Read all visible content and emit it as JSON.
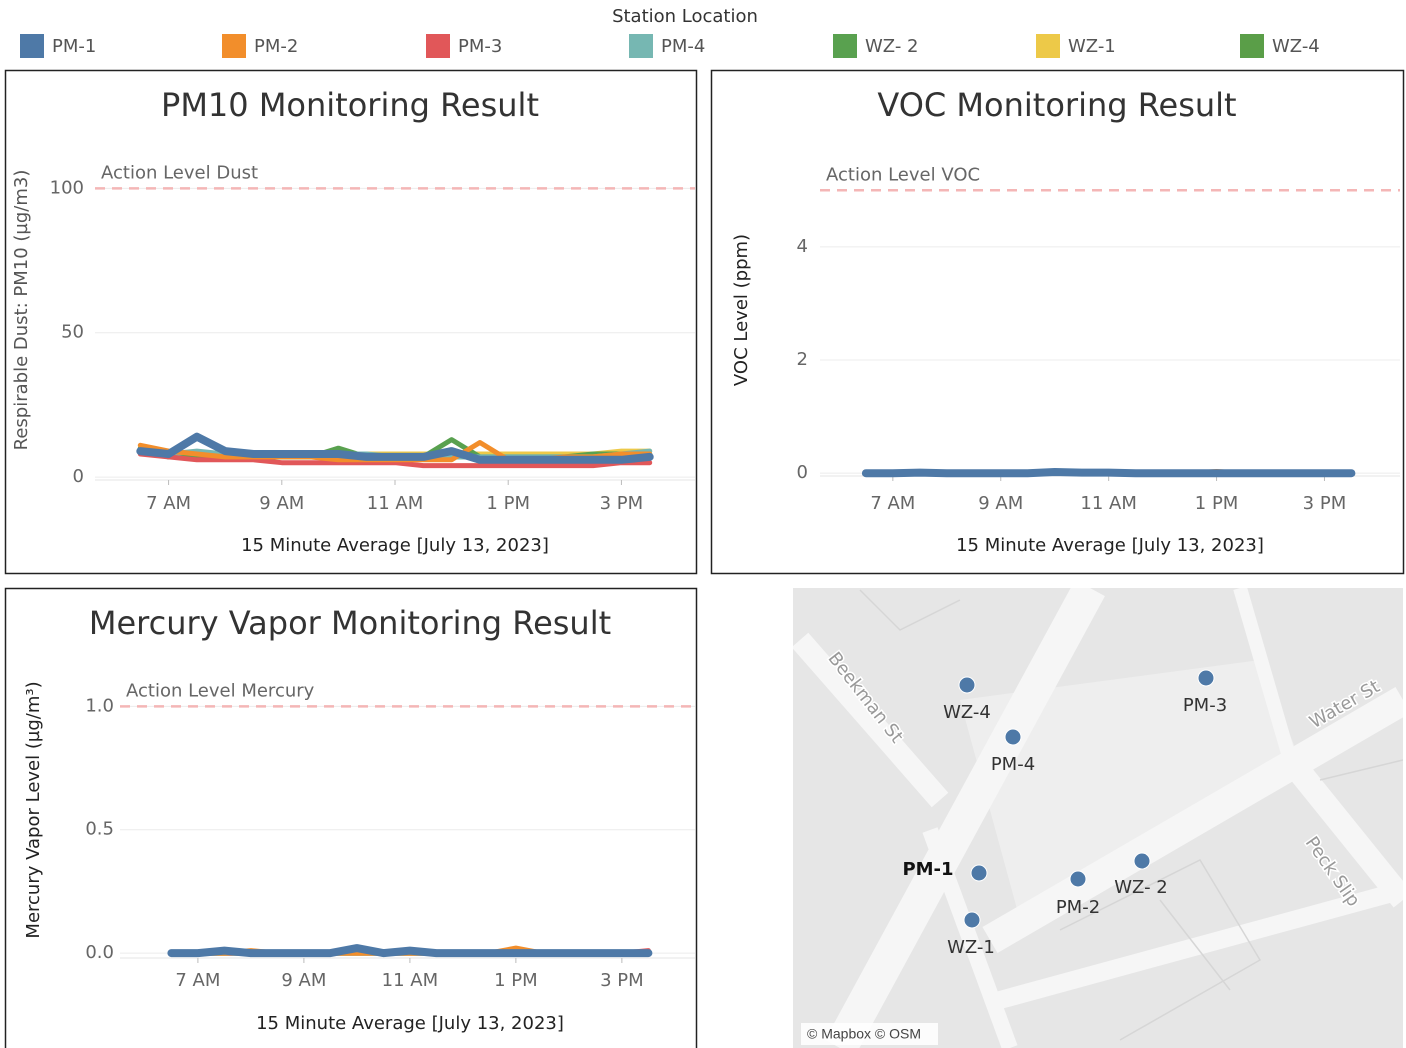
{
  "legend_title": "Station Location",
  "chart_data": [
    {
      "type": "line",
      "title": "PM10 Monitoring Result",
      "x_label": "15 Minute Average [July 13, 2023]",
      "y_label": "Respirable Dust: PM10 (µg/m3)",
      "x": [
        6.5,
        7,
        7.5,
        8,
        8.5,
        9,
        9.5,
        10,
        10.5,
        11,
        11.5,
        12,
        12.5,
        13,
        13.5,
        14,
        14.5,
        15,
        15.5
      ],
      "xlim": [
        5.7,
        16.3
      ],
      "xticks": [
        {
          "value": 7,
          "label": "7 AM"
        },
        {
          "value": 9,
          "label": "9 AM"
        },
        {
          "value": 11,
          "label": "11 AM"
        },
        {
          "value": 13,
          "label": "1 PM"
        },
        {
          "value": 15,
          "label": "3 PM"
        }
      ],
      "ylim": [
        -1,
        115
      ],
      "yticks": [
        0,
        50,
        100
      ],
      "grid": true,
      "annotation": {
        "text": "Action Level Dust",
        "value": 100
      },
      "series": [
        {
          "name": "PM-1",
          "color": "#4e79a7",
          "values": [
            9,
            8,
            14,
            9,
            8,
            8,
            8,
            8,
            7,
            7,
            7,
            9,
            6,
            6,
            6,
            6,
            6,
            6,
            7
          ]
        },
        {
          "name": "PM-2",
          "color": "#f28e2b",
          "values": [
            11,
            9,
            8,
            7,
            7,
            7,
            7,
            6,
            6,
            6,
            6,
            6,
            12,
            6,
            6,
            7,
            7,
            8,
            8
          ]
        },
        {
          "name": "PM-3",
          "color": "#e15759",
          "values": [
            8,
            7,
            6,
            6,
            6,
            5,
            5,
            5,
            5,
            5,
            4,
            4,
            4,
            4,
            4,
            4,
            4,
            5,
            5
          ]
        },
        {
          "name": "PM-4",
          "color": "#76b7b2",
          "values": [
            9,
            8,
            9,
            8,
            8,
            8,
            8,
            8,
            8,
            7,
            7,
            7,
            7,
            7,
            7,
            7,
            7,
            8,
            9
          ]
        },
        {
          "name": "WZ- 2",
          "color": "#59a14f",
          "values": [
            10,
            7,
            7,
            7,
            7,
            7,
            7,
            10,
            7,
            7,
            7,
            13,
            7,
            7,
            7,
            7,
            8,
            8,
            8
          ]
        },
        {
          "name": "WZ-1",
          "color": "#edc948",
          "values": [
            9,
            8,
            8,
            8,
            8,
            8,
            8,
            8,
            8,
            8,
            8,
            8,
            8,
            8,
            8,
            8,
            8,
            9,
            9
          ]
        },
        {
          "name": "WZ-4",
          "color": "#5a9e48",
          "values": [
            9,
            7,
            7,
            7,
            7,
            7,
            7,
            7,
            7,
            7,
            7,
            7,
            7,
            7,
            7,
            7,
            7,
            8,
            8
          ]
        }
      ]
    },
    {
      "type": "line",
      "title": "VOC Monitoring Result",
      "x_label": "15 Minute Average [July 13, 2023]",
      "y_label": "VOC Level (ppm)",
      "x": [
        6.5,
        7,
        7.5,
        8,
        8.5,
        9,
        9.5,
        10,
        10.5,
        11,
        11.5,
        12,
        12.5,
        13,
        13.5,
        14,
        14.5,
        15,
        15.5
      ],
      "xlim": [
        5.65,
        16.4
      ],
      "xticks": [
        {
          "value": 7,
          "label": "7 AM"
        },
        {
          "value": 9,
          "label": "9 AM"
        },
        {
          "value": 11,
          "label": "11 AM"
        },
        {
          "value": 13,
          "label": "1 PM"
        },
        {
          "value": 15,
          "label": "3 PM"
        }
      ],
      "ylim": [
        -0.05,
        5.8
      ],
      "yticks": [
        0,
        2,
        4
      ],
      "grid": true,
      "annotation": {
        "text": "Action Level VOC",
        "value": 5
      },
      "series": [
        {
          "name": "PM-1",
          "color": "#4e79a7",
          "values": [
            0,
            0,
            0.01,
            0,
            0,
            0,
            0,
            0.02,
            0.01,
            0.01,
            0,
            0,
            0,
            0,
            0,
            0,
            0,
            0,
            0
          ]
        },
        {
          "name": "PM-2",
          "color": "#f28e2b",
          "values": [
            0,
            0,
            0,
            0,
            0,
            0,
            0,
            0,
            0,
            0,
            0,
            0,
            0,
            0.03,
            0,
            0,
            0,
            0,
            0
          ]
        },
        {
          "name": "PM-3",
          "color": "#e15759",
          "values": [
            0,
            0,
            0,
            0,
            0,
            0,
            0,
            0,
            0,
            0,
            0,
            0,
            0,
            0,
            0,
            0,
            0,
            0,
            0
          ]
        },
        {
          "name": "PM-4",
          "color": "#76b7b2",
          "values": [
            0,
            0,
            0,
            0,
            0,
            0,
            0,
            0,
            0,
            0,
            0,
            0,
            0,
            0,
            0,
            0,
            0,
            0,
            0
          ]
        },
        {
          "name": "WZ- 2",
          "color": "#59a14f",
          "values": [
            0,
            0,
            0,
            0,
            0,
            0,
            0,
            0,
            0,
            0,
            0,
            0,
            0,
            0,
            0,
            0,
            0,
            0,
            0
          ]
        },
        {
          "name": "WZ-1",
          "color": "#edc948",
          "values": [
            0,
            0,
            0,
            0,
            0,
            0,
            0,
            0,
            0,
            0,
            0,
            0,
            0,
            0,
            0,
            0,
            0,
            0,
            0
          ]
        },
        {
          "name": "WZ-4",
          "color": "#5a9e48",
          "values": [
            0,
            0,
            0,
            0,
            0,
            0,
            0,
            0,
            0,
            0,
            0,
            0,
            0,
            0,
            0,
            0,
            0,
            0,
            0
          ]
        }
      ]
    },
    {
      "type": "line",
      "title": "Mercury Vapor Monitoring Result",
      "x_label": "15 Minute Average [July 13, 2023]",
      "y_label": "Mercury Vapor Level (µg/m³)",
      "x": [
        6.5,
        7,
        7.5,
        8,
        8.5,
        9,
        9.5,
        10,
        10.5,
        11,
        11.5,
        12,
        12.5,
        13,
        13.5,
        14,
        14.5,
        15,
        15.5
      ],
      "xlim": [
        5.53,
        16.38
      ],
      "xticks": [
        {
          "value": 7,
          "label": "7 AM"
        },
        {
          "value": 9,
          "label": "9 AM"
        },
        {
          "value": 11,
          "label": "11 AM"
        },
        {
          "value": 13,
          "label": "1 PM"
        },
        {
          "value": 15,
          "label": "3 PM"
        }
      ],
      "ylim": [
        -0.02,
        1.18
      ],
      "yticks": [
        {
          "value": 0,
          "label": "0.0"
        },
        0.5,
        {
          "value": 1,
          "label": "1.0"
        }
      ],
      "grid": true,
      "annotation": {
        "text": "Action Level Mercury",
        "value": 1
      },
      "series": [
        {
          "name": "PM-1",
          "color": "#4e79a7",
          "values": [
            0,
            0,
            0.01,
            0,
            0,
            0,
            0,
            0.02,
            0,
            0.01,
            0,
            0,
            0,
            0,
            0,
            0,
            0,
            0,
            0
          ]
        },
        {
          "name": "PM-2",
          "color": "#f28e2b",
          "values": [
            0,
            0,
            0,
            0.01,
            0,
            0,
            0,
            0,
            0,
            0,
            0,
            0,
            0,
            0.02,
            0,
            0,
            0,
            0,
            0
          ]
        },
        {
          "name": "PM-3",
          "color": "#e15759",
          "values": [
            0,
            0,
            0,
            0,
            0,
            0,
            0,
            0,
            0,
            0,
            0,
            0,
            0,
            0,
            0,
            0,
            0,
            0,
            0.01
          ]
        },
        {
          "name": "PM-4",
          "color": "#76b7b2",
          "values": [
            0,
            0,
            0,
            0,
            0,
            0,
            0,
            0,
            0,
            0,
            0,
            0,
            0,
            0,
            0,
            0,
            0,
            0,
            0
          ]
        },
        {
          "name": "WZ- 2",
          "color": "#59a14f",
          "values": [
            0,
            0,
            0,
            0,
            0,
            0,
            0,
            0,
            0,
            0,
            0,
            0,
            0,
            0,
            0,
            0,
            0,
            0,
            0
          ]
        },
        {
          "name": "WZ-1",
          "color": "#edc948",
          "values": [
            0,
            0,
            0,
            0,
            0,
            0,
            0,
            0,
            0,
            0,
            0,
            0,
            0,
            0,
            0,
            0,
            0,
            0,
            0
          ]
        },
        {
          "name": "WZ-4",
          "color": "#5a9e48",
          "values": [
            0,
            0,
            0,
            0,
            0,
            0,
            0,
            0,
            0,
            0,
            0,
            0,
            0,
            0,
            0,
            0,
            0,
            0,
            0
          ]
        }
      ]
    }
  ],
  "map": {
    "streets": [
      "Beekman St",
      "Water St",
      "Peck Slip"
    ],
    "stations": [
      "WZ-4",
      "PM-4",
      "PM-3",
      "PM-1",
      "WZ-1",
      "PM-2",
      "WZ- 2"
    ],
    "attribution": "© Mapbox © OSM"
  }
}
